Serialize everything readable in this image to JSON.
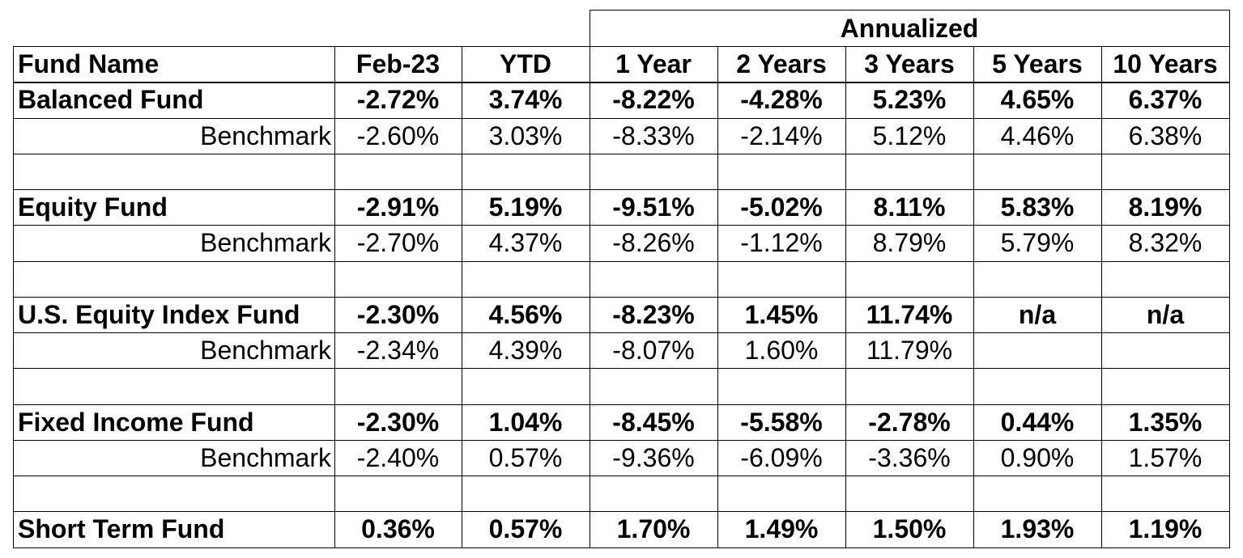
{
  "table": {
    "group_header": "Annualized",
    "columns": [
      "Fund Name",
      "Feb-23",
      "YTD",
      "1 Year",
      "2 Years",
      "3 Years",
      "5 Years",
      "10 Years"
    ],
    "rows": [
      {
        "type": "fund",
        "label": "Balanced Fund",
        "values": [
          "-2.72%",
          "3.74%",
          "-8.22%",
          "-4.28%",
          "5.23%",
          "4.65%",
          "6.37%"
        ]
      },
      {
        "type": "benchmark",
        "label": "Benchmark",
        "values": [
          "-2.60%",
          "3.03%",
          "-8.33%",
          "-2.14%",
          "5.12%",
          "4.46%",
          "6.38%"
        ]
      },
      {
        "type": "spacer",
        "label": "",
        "values": [
          "",
          "",
          "",
          "",
          "",
          "",
          ""
        ]
      },
      {
        "type": "fund",
        "label": "Equity Fund",
        "values": [
          "-2.91%",
          "5.19%",
          "-9.51%",
          "-5.02%",
          "8.11%",
          "5.83%",
          "8.19%"
        ]
      },
      {
        "type": "benchmark",
        "label": "Benchmark",
        "values": [
          "-2.70%",
          "4.37%",
          "-8.26%",
          "-1.12%",
          "8.79%",
          "5.79%",
          "8.32%"
        ]
      },
      {
        "type": "spacer",
        "label": "",
        "values": [
          "",
          "",
          "",
          "",
          "",
          "",
          ""
        ]
      },
      {
        "type": "fund",
        "label": "U.S. Equity Index Fund",
        "values": [
          "-2.30%",
          "4.56%",
          "-8.23%",
          "1.45%",
          "11.74%",
          "n/a",
          "n/a"
        ]
      },
      {
        "type": "benchmark",
        "label": "Benchmark",
        "values": [
          "-2.34%",
          "4.39%",
          "-8.07%",
          "1.60%",
          "11.79%",
          "",
          ""
        ]
      },
      {
        "type": "spacer",
        "label": "",
        "values": [
          "",
          "",
          "",
          "",
          "",
          "",
          ""
        ]
      },
      {
        "type": "fund",
        "label": "Fixed Income Fund",
        "values": [
          "-2.30%",
          "1.04%",
          "-8.45%",
          "-5.58%",
          "-2.78%",
          "0.44%",
          "1.35%"
        ]
      },
      {
        "type": "benchmark",
        "label": "Benchmark",
        "values": [
          "-2.40%",
          "0.57%",
          "-9.36%",
          "-6.09%",
          "-3.36%",
          "0.90%",
          "1.57%"
        ]
      },
      {
        "type": "spacer",
        "label": "",
        "values": [
          "",
          "",
          "",
          "",
          "",
          "",
          ""
        ]
      },
      {
        "type": "fund",
        "label": "Short Term Fund",
        "values": [
          "0.36%",
          "0.57%",
          "1.70%",
          "1.49%",
          "1.50%",
          "1.93%",
          "1.19%"
        ]
      }
    ]
  }
}
